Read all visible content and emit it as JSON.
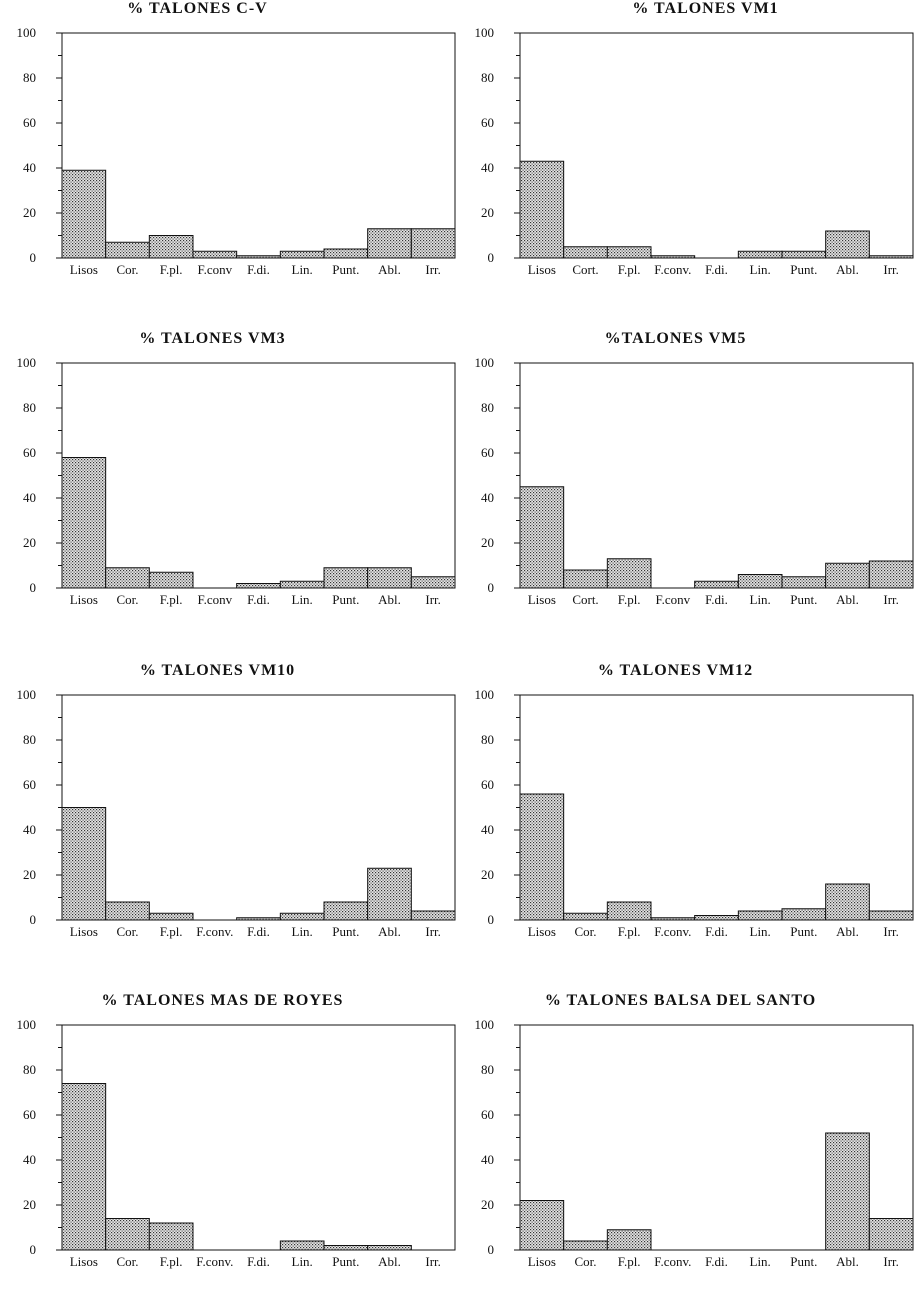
{
  "style": {
    "bar_fill": "#c9c9c9",
    "bar_stroke": "#111111",
    "axis_color": "#111111"
  },
  "chart_data": [
    {
      "type": "bar",
      "title": "% TALONES C-V",
      "categories": [
        "Lisos",
        "Cor.",
        "F.pl.",
        "F.conv",
        "F.di.",
        "Lin.",
        "Punt.",
        "Abl.",
        "Irr."
      ],
      "values": [
        39,
        7,
        10,
        3,
        1,
        3,
        4,
        13,
        13
      ],
      "ylim": [
        0,
        100
      ],
      "yticks": [
        0,
        20,
        40,
        60,
        80,
        100
      ],
      "xlabel": "",
      "ylabel": ""
    },
    {
      "type": "bar",
      "title": "% TALONES  VM1",
      "categories": [
        "Lisos",
        "Cort.",
        "F.pl.",
        "F.conv.",
        "F.di.",
        "Lin.",
        "Punt.",
        "Abl.",
        "Irr."
      ],
      "values": [
        43,
        5,
        5,
        1,
        0,
        3,
        3,
        12,
        1
      ],
      "ylim": [
        0,
        100
      ],
      "yticks": [
        0,
        20,
        40,
        60,
        80,
        100
      ],
      "xlabel": "",
      "ylabel": ""
    },
    {
      "type": "bar",
      "title": "% TALONES VM3",
      "categories": [
        "Lisos",
        "Cor.",
        "F.pl.",
        "F.conv",
        "F.di.",
        "Lin.",
        "Punt.",
        "Abl.",
        "Irr."
      ],
      "values": [
        58,
        9,
        7,
        0,
        2,
        3,
        9,
        9,
        5
      ],
      "ylim": [
        0,
        100
      ],
      "yticks": [
        0,
        20,
        40,
        60,
        80,
        100
      ],
      "xlabel": "",
      "ylabel": ""
    },
    {
      "type": "bar",
      "title": "%TALONES VM5",
      "categories": [
        "Lisos",
        "Cort.",
        "F.pl.",
        "F.conv",
        "F.di.",
        "Lin.",
        "Punt.",
        "Abl.",
        "Irr."
      ],
      "values": [
        45,
        8,
        13,
        0,
        3,
        6,
        5,
        11,
        12
      ],
      "ylim": [
        0,
        100
      ],
      "yticks": [
        0,
        20,
        40,
        60,
        80,
        100
      ],
      "xlabel": "",
      "ylabel": ""
    },
    {
      "type": "bar",
      "title": "% TALONES VM10",
      "categories": [
        "Lisos",
        "Cor.",
        "F.pl.",
        "F.conv.",
        "F.di.",
        "Lin.",
        "Punt.",
        "Abl.",
        "Irr."
      ],
      "values": [
        50,
        8,
        3,
        0,
        1,
        3,
        8,
        23,
        4
      ],
      "ylim": [
        0,
        100
      ],
      "yticks": [
        0,
        20,
        40,
        60,
        80,
        100
      ],
      "xlabel": "",
      "ylabel": ""
    },
    {
      "type": "bar",
      "title": "% TALONES VM12",
      "categories": [
        "Lisos",
        "Cor.",
        "F.pl.",
        "F.conv.",
        "F.di.",
        "Lin.",
        "Punt.",
        "Abl.",
        "Irr."
      ],
      "values": [
        56,
        3,
        8,
        1,
        2,
        4,
        5,
        16,
        4
      ],
      "ylim": [
        0,
        100
      ],
      "yticks": [
        0,
        20,
        40,
        60,
        80,
        100
      ],
      "xlabel": "",
      "ylabel": ""
    },
    {
      "type": "bar",
      "title": "% TALONES MAS DE ROYES",
      "categories": [
        "Lisos",
        "Cor.",
        "F.pl.",
        "F.conv.",
        "F.di.",
        "Lin.",
        "Punt.",
        "Abl.",
        "Irr."
      ],
      "values": [
        74,
        14,
        12,
        0,
        0,
        4,
        2,
        2,
        0
      ],
      "ylim": [
        0,
        100
      ],
      "yticks": [
        0,
        20,
        40,
        60,
        80,
        100
      ],
      "xlabel": "",
      "ylabel": ""
    },
    {
      "type": "bar",
      "title": "% TALONES BALSA DEL SANTO",
      "categories": [
        "Lisos",
        "Cor.",
        "F.pl.",
        "F.conv.",
        "F.di.",
        "Lin.",
        "Punt.",
        "Abl.",
        "Irr."
      ],
      "values": [
        22,
        4,
        9,
        0,
        0,
        0,
        0,
        52,
        14
      ],
      "ylim": [
        0,
        100
      ],
      "yticks": [
        0,
        20,
        40,
        60,
        80,
        100
      ],
      "xlabel": "",
      "ylabel": ""
    }
  ]
}
